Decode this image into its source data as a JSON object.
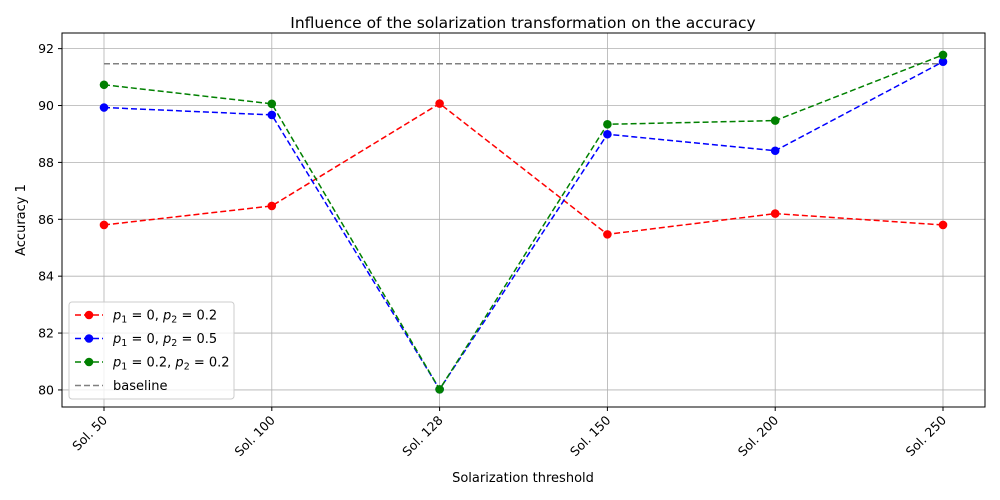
{
  "chart_data": {
    "type": "line",
    "title": "Influence of the solarization transformation on the accuracy",
    "xlabel": "Solarization threshold",
    "ylabel": "Accuracy 1",
    "categories": [
      "Sol. 50",
      "Sol. 100",
      "Sol. 128",
      "Sol. 150",
      "Sol. 200",
      "Sol. 250"
    ],
    "ylim": [
      79.4,
      92.55
    ],
    "yticks": [
      80,
      82,
      84,
      86,
      88,
      90,
      92
    ],
    "grid": true,
    "legend_position": "lower-left",
    "series": [
      {
        "name": "p1=0, p2=0.2",
        "p1": "0",
        "p2": "0.2",
        "color": "#ff0000",
        "values": [
          85.8,
          86.47,
          90.07,
          85.47,
          86.2,
          85.8
        ]
      },
      {
        "name": "p1=0, p2=0.5",
        "p1": "0",
        "p2": "0.5",
        "color": "#0000ff",
        "values": [
          89.93,
          89.67,
          80.02,
          88.99,
          88.41,
          91.54
        ]
      },
      {
        "name": "p1=0.2, p2=0.2",
        "p1": "0.2",
        "p2": "0.2",
        "color": "#008000",
        "values": [
          90.73,
          90.06,
          80.02,
          89.34,
          89.47,
          91.78
        ]
      }
    ],
    "baseline": {
      "name": "baseline",
      "value": 91.47,
      "color": "#808080"
    }
  }
}
